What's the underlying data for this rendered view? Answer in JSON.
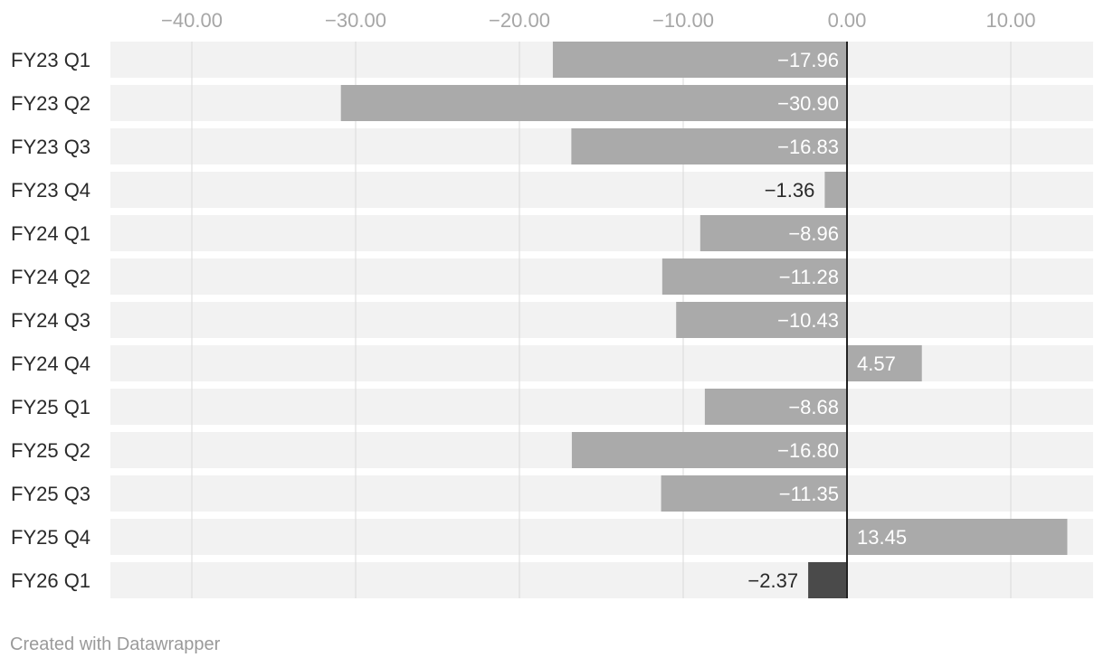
{
  "footer": {
    "credit": "Created with Datawrapper"
  },
  "colors": {
    "bar": "#aaaaaa",
    "highlight": "#4a4a4a",
    "row_bg": "#f2f2f2",
    "grid": "#d9d9d9",
    "zero_line": "#222222"
  },
  "chart_data": {
    "type": "bar",
    "orientation": "horizontal",
    "title": "",
    "xlabel": "",
    "ylabel": "",
    "xlim": [
      -45,
      15
    ],
    "ticks": [
      -40,
      -30,
      -20,
      -10,
      0,
      10
    ],
    "tick_labels": [
      "−40.00",
      "−30.00",
      "−20.00",
      "−10.00",
      "0.00",
      "10.00"
    ],
    "grid": true,
    "tick_position": "top",
    "categories": [
      "FY23 Q1",
      "FY23 Q2",
      "FY23 Q3",
      "FY23 Q4",
      "FY24 Q1",
      "FY24 Q2",
      "FY24 Q3",
      "FY24 Q4",
      "FY25 Q1",
      "FY25 Q2",
      "FY25 Q3",
      "FY25 Q4",
      "FY26 Q1"
    ],
    "values": [
      -17.96,
      -30.9,
      -16.83,
      -1.36,
      -8.96,
      -11.28,
      -10.43,
      4.57,
      -8.68,
      -16.8,
      -11.35,
      13.45,
      -2.37
    ],
    "value_labels": [
      "−17.96",
      "−30.90",
      "−16.83",
      "−1.36",
      "−8.96",
      "−11.28",
      "−10.43",
      "4.57",
      "−8.68",
      "−16.80",
      "−11.35",
      "13.45",
      "−2.37"
    ],
    "highlighted": [
      "FY26 Q1"
    ]
  }
}
